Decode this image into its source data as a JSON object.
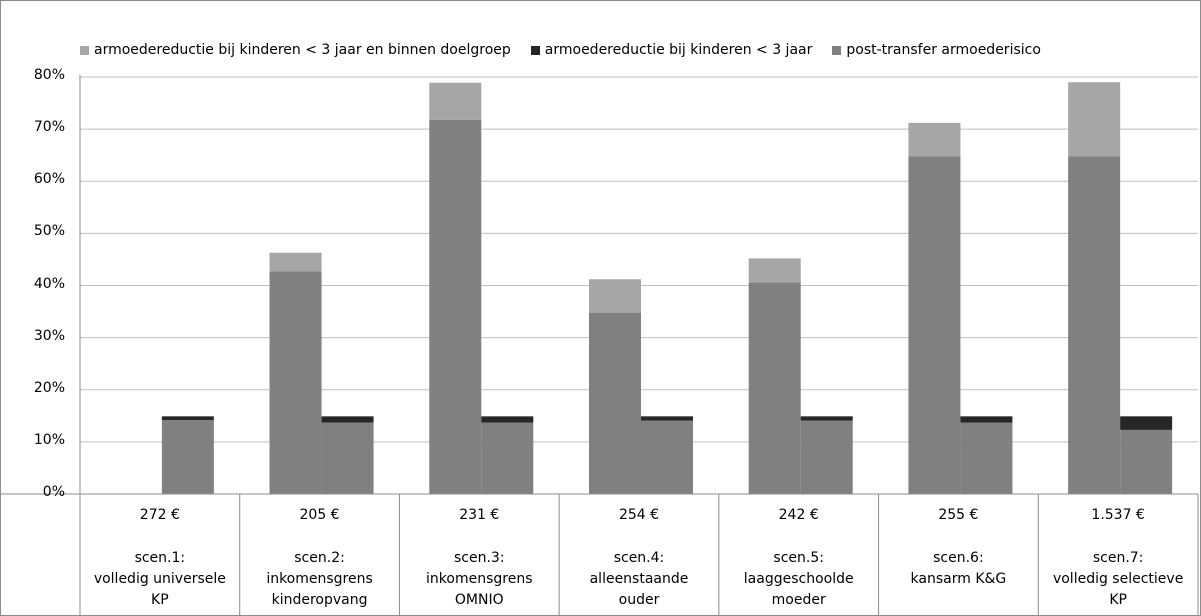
{
  "chart_data": {
    "type": "bar",
    "stacked": true,
    "ylim": [
      0,
      0.8
    ],
    "y_ticks": [
      "0%",
      "10%",
      "20%",
      "30%",
      "40%",
      "50%",
      "60%",
      "70%",
      "80%"
    ],
    "grid": true,
    "legend": {
      "placement": "top",
      "entries": [
        {
          "key": "doelgroep",
          "label": "armoedereductie bij kinderen < 3 jaar en binnen doelgroep",
          "color": "#a6a6a6"
        },
        {
          "key": "kinderen",
          "label": "armoedereductie bij kinderen < 3 jaar",
          "color": "#262626"
        },
        {
          "key": "post",
          "label": "post-transfer armoederisico",
          "color": "#808080"
        }
      ]
    },
    "categories": [
      {
        "cost": "272 €",
        "label": [
          "scen.1:",
          "volledig universele",
          "KP"
        ]
      },
      {
        "cost": "205 €",
        "label": [
          "scen.2:",
          "inkomensgrens",
          "kinderopvang"
        ]
      },
      {
        "cost": "231 €",
        "label": [
          "scen.3:",
          "inkomensgrens",
          "OMNIO"
        ]
      },
      {
        "cost": "254 €",
        "label": [
          "scen.4:",
          "alleenstaande",
          "ouder"
        ]
      },
      {
        "cost": "242 €",
        "label": [
          "scen.5:",
          "laaggeschoolde",
          "moeder"
        ]
      },
      {
        "cost": "255 €",
        "label": [
          "scen.6:",
          "kansarm K&G"
        ]
      },
      {
        "cost": "1.537 €",
        "label": [
          "scen.7:",
          "volledig selectieve",
          "KP"
        ]
      }
    ],
    "bars": [
      {
        "post": null,
        "doelgroep": null,
        "post_kinderen": 0.142,
        "kinderen": 0.007
      },
      {
        "post": 0.427,
        "doelgroep": 0.036,
        "post_kinderen": 0.137,
        "kinderen": 0.012
      },
      {
        "post": 0.718,
        "doelgroep": 0.071,
        "post_kinderen": 0.137,
        "kinderen": 0.012
      },
      {
        "post": 0.348,
        "doelgroep": 0.064,
        "post_kinderen": 0.141,
        "kinderen": 0.008
      },
      {
        "post": 0.406,
        "doelgroep": 0.046,
        "post_kinderen": 0.141,
        "kinderen": 0.008
      },
      {
        "post": 0.648,
        "doelgroep": 0.064,
        "post_kinderen": 0.137,
        "kinderen": 0.012
      },
      {
        "post": 0.648,
        "doelgroep": 0.142,
        "post_kinderen": 0.123,
        "kinderen": 0.026
      }
    ]
  }
}
